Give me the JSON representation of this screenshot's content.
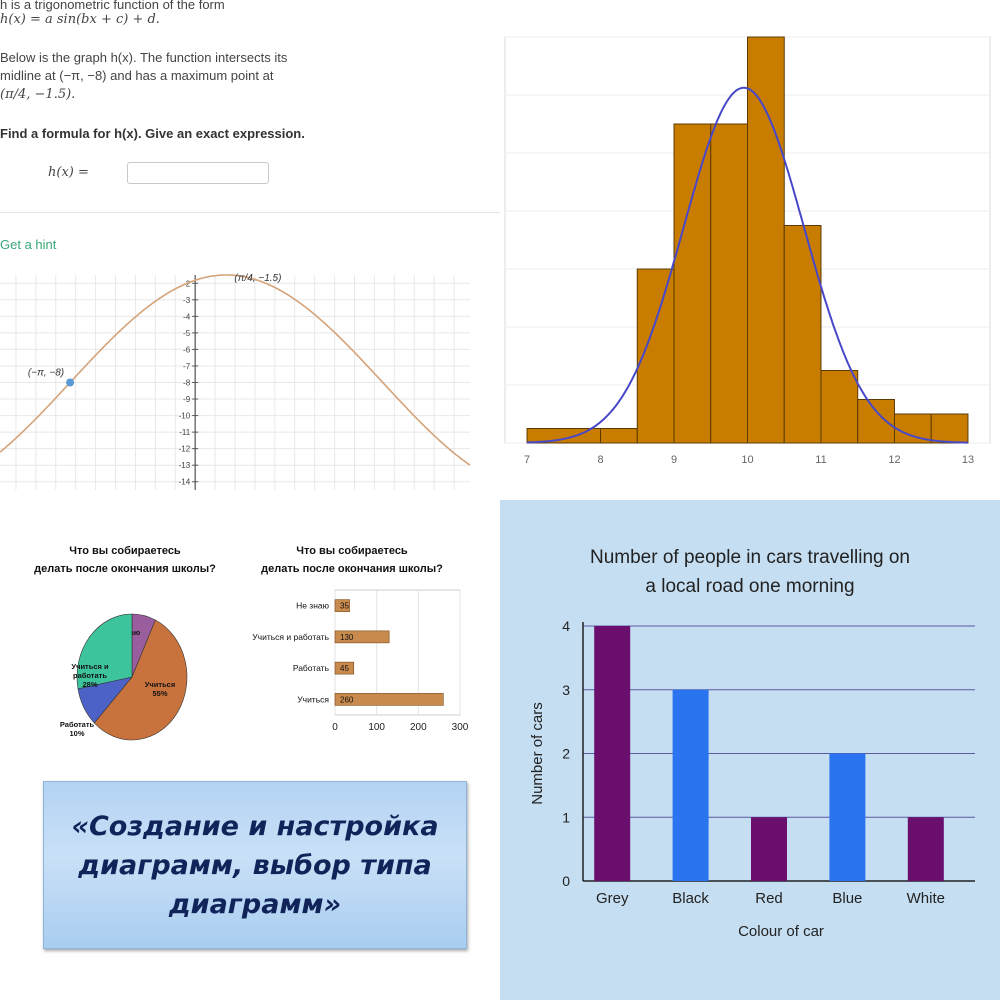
{
  "math": {
    "intro_line1": "h is a trigonometric function of the form",
    "form": "h(x) = a sin(bx + c) + d.",
    "desc_line1": "Below is the graph h(x). The function intersects its",
    "desc_line2": "midline at (−π, −8) and has a maximum point at",
    "max_point": "(π/4, −1.5).",
    "prompt": "Find a formula for h(x). Give an exact expression.",
    "answer_label": "h(x) =",
    "answer_value": "",
    "hint_label": "Get a hint",
    "midline_label": "(−π, −8)",
    "max_label": "(π/4, −1.5)"
  },
  "colors": {
    "curve": "#d4a37a",
    "point": "#5b9bd5",
    "hist_bar": "#c97d00",
    "hist_curve": "#4848c8",
    "cars_bg": "#c5def2",
    "purple": "#6a0f6e",
    "blue": "#2a74f0",
    "banner_text": "#10245a"
  },
  "chart_data": [
    {
      "type": "line",
      "function": "h(x) = -6.5 sin(x - pi/4) ... as drawn: midline y = -8, amplitude 6.5",
      "x_range": [
        -4.9,
        6.9
      ],
      "ylim": [
        -14.5,
        -1.5
      ],
      "y_ticks": [
        -2,
        -3,
        -4,
        -5,
        -6,
        -7,
        -8,
        -9,
        -10,
        -11,
        -12,
        -13,
        -14
      ],
      "points": [
        {
          "label": "(−π, −8)",
          "x": -3.14,
          "y": -8
        },
        {
          "label": "(π/4, −1.5)",
          "x": 0.785,
          "y": -1.5
        }
      ],
      "grid": true
    },
    {
      "type": "bar",
      "subtype": "histogram with fitted normal curve",
      "bins": [
        [
          7,
          8
        ],
        [
          8,
          8.5
        ],
        [
          8.5,
          9
        ],
        [
          9,
          9.5
        ],
        [
          9.5,
          10
        ],
        [
          10,
          10.5
        ],
        [
          10.5,
          11
        ],
        [
          11,
          11.5
        ],
        [
          11.5,
          12
        ],
        [
          12,
          12.5
        ],
        [
          12.5,
          13
        ]
      ],
      "values": [
        1,
        1,
        12,
        22,
        22,
        28,
        15,
        5,
        3,
        2,
        2
      ],
      "x_ticks": [
        "7",
        "8",
        "9",
        "10",
        "11",
        "12",
        "13"
      ],
      "curve": {
        "mean": 9.95,
        "sd": 0.82,
        "peak": 24.5
      },
      "ylim": [
        0,
        28
      ],
      "grid": true
    },
    {
      "type": "pie",
      "title": "Что вы собираетесь делать после окончания школы?",
      "slices": [
        {
          "label": "Не знаю",
          "value": 7,
          "display": "Не знаю 7%",
          "color": "#9a5e9e"
        },
        {
          "label": "Учиться",
          "value": 55,
          "display": "Учиться 55%",
          "color": "#c8733e"
        },
        {
          "label": "Работать",
          "value": 10,
          "display": "Работать 10%",
          "color": "#4d62c6"
        },
        {
          "label": "Учиться и работать",
          "value": 28,
          "display": "Учиться и работать 28%",
          "color": "#3ec49c"
        }
      ]
    },
    {
      "type": "bar",
      "orientation": "horizontal",
      "title": "Что вы собираетесь делать после окончания школы?",
      "categories": [
        "Не знаю",
        "Учиться и работать",
        "Работать",
        "Учиться"
      ],
      "values": [
        35,
        130,
        45,
        260
      ],
      "x_ticks": [
        0,
        100,
        200,
        300
      ],
      "xlim": [
        0,
        300
      ]
    },
    {
      "type": "bar",
      "title": "Number of people in cars travelling on a local road one morning",
      "xlabel": "Colour of car",
      "ylabel": "Number of cars",
      "categories": [
        "Grey",
        "Black",
        "Red",
        "Blue",
        "White"
      ],
      "values": [
        4,
        3,
        1,
        2,
        1
      ],
      "bar_colors": [
        "#6a0f6e",
        "#2a74f0",
        "#6a0f6e",
        "#2a74f0",
        "#6a0f6e"
      ],
      "ylim": [
        0,
        4
      ],
      "y_ticks": [
        0,
        1,
        2,
        3,
        4
      ],
      "grid": true
    }
  ],
  "banner": {
    "text": "«Создание и настройка диаграмм, выбор типа диаграмм»"
  }
}
